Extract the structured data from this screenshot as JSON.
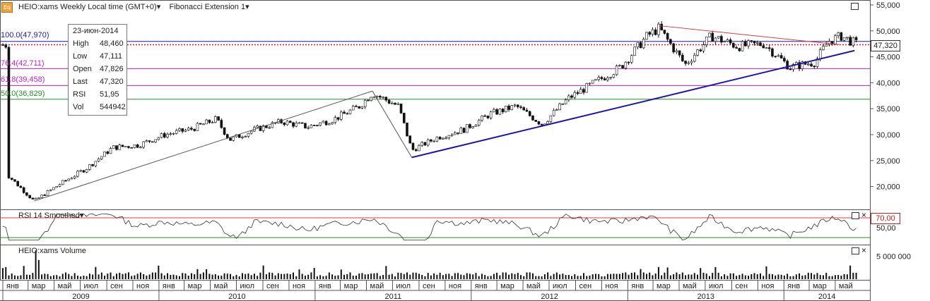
{
  "header": {
    "symbol_label": "HEIO:xams Weekly Local time (GMT+0)",
    "study_label": "Fibonacci Extension 1",
    "icon": "eq-icon",
    "icon_text": "Eq"
  },
  "info_box": {
    "date": "23-июн-2014",
    "rows": [
      {
        "label": "High",
        "value": "48,460"
      },
      {
        "label": "Low",
        "value": "47,111"
      },
      {
        "label": "Open",
        "value": "47,826"
      },
      {
        "label": "Last",
        "value": "47,320"
      },
      {
        "label": "RSI",
        "value": "51,95"
      },
      {
        "label": "Vol",
        "value": "544942"
      }
    ]
  },
  "price_panel": {
    "y_ticks": [
      "55,000",
      "50,000",
      "45,000",
      "40,000",
      "35,000",
      "30,000",
      "25,000",
      "20,000"
    ],
    "y_values": [
      55000,
      50000,
      45000,
      40000,
      35000,
      30000,
      25000,
      20000
    ],
    "current_price_label": "47,320",
    "current_price": 47320,
    "fib_levels": [
      {
        "label": "100.0(47,970)",
        "value": 47970,
        "color": "#1a1aa0"
      },
      {
        "label": "76.4(42,711)",
        "value": 42711,
        "color": "#c020c0"
      },
      {
        "label": "61.8(39,458)",
        "value": 39458,
        "color": "#c020c0"
      },
      {
        "label": "50.0(36,829)",
        "value": 36829,
        "color": "#2a8a2a"
      }
    ]
  },
  "rsi_panel": {
    "title": "RSI 14 Smoothed",
    "level_label": "70,00",
    "level_value": 70,
    "y_tick": "50,00"
  },
  "volume_panel": {
    "title": "HEIO:xams Volume",
    "y_tick": "5 000 000"
  },
  "x_axis": {
    "months": [
      "янв",
      "мар",
      "май",
      "июл",
      "сен",
      "ноя",
      "янв",
      "мар",
      "май",
      "июл",
      "сен",
      "ноя",
      "янв",
      "мар",
      "май",
      "июл",
      "сен",
      "ноя",
      "янв",
      "мар",
      "май",
      "июл",
      "сен",
      "ноя",
      "янв",
      "мар",
      "май",
      "июл",
      "сен",
      "ноя",
      "янв",
      "мар",
      "май"
    ],
    "years": [
      "2009",
      "2010",
      "2011",
      "2012",
      "2013",
      "2014"
    ]
  },
  "chart_data": {
    "type": "candlestick",
    "title": "HEIO:xams Weekly",
    "x_range": [
      "2009-01",
      "2014-06"
    ],
    "ylim": [
      16000,
      56000
    ],
    "close_points": [
      {
        "date": "2009-01",
        "value": 22000
      },
      {
        "date": "2009-03",
        "value": 17200
      },
      {
        "date": "2009-05",
        "value": 20500
      },
      {
        "date": "2009-07",
        "value": 23500
      },
      {
        "date": "2009-09",
        "value": 27500
      },
      {
        "date": "2009-11",
        "value": 28000
      },
      {
        "date": "2010-01",
        "value": 30000
      },
      {
        "date": "2010-03",
        "value": 31000
      },
      {
        "date": "2010-05",
        "value": 33000
      },
      {
        "date": "2010-06",
        "value": 29000
      },
      {
        "date": "2010-08",
        "value": 31000
      },
      {
        "date": "2010-10",
        "value": 32500
      },
      {
        "date": "2010-12",
        "value": 31500
      },
      {
        "date": "2011-02",
        "value": 33000
      },
      {
        "date": "2011-04",
        "value": 35500
      },
      {
        "date": "2011-05",
        "value": 38000
      },
      {
        "date": "2011-07",
        "value": 35500
      },
      {
        "date": "2011-08",
        "value": 27000
      },
      {
        "date": "2011-10",
        "value": 29500
      },
      {
        "date": "2011-12",
        "value": 31000
      },
      {
        "date": "2012-02",
        "value": 34000
      },
      {
        "date": "2012-04",
        "value": 35500
      },
      {
        "date": "2012-06",
        "value": 32000
      },
      {
        "date": "2012-08",
        "value": 37000
      },
      {
        "date": "2012-10",
        "value": 40000
      },
      {
        "date": "2012-12",
        "value": 43000
      },
      {
        "date": "2013-02",
        "value": 49000
      },
      {
        "date": "2013-03",
        "value": 50500
      },
      {
        "date": "2013-05",
        "value": 43500
      },
      {
        "date": "2013-07",
        "value": 49000
      },
      {
        "date": "2013-09",
        "value": 47000
      },
      {
        "date": "2013-11",
        "value": 47500
      },
      {
        "date": "2014-01",
        "value": 43000
      },
      {
        "date": "2014-03",
        "value": 44000
      },
      {
        "date": "2014-04",
        "value": 48000
      },
      {
        "date": "2014-05",
        "value": 49000
      },
      {
        "date": "2014-06",
        "value": 47320
      }
    ],
    "last_bar": {
      "date": "23-июн-2014",
      "high": 48460,
      "low": 47111,
      "open": 47826,
      "close": 47320,
      "rsi": 51.95,
      "volume": 544942
    },
    "trendlines": [
      {
        "from": {
          "date": "2011-08",
          "value": 25600
        },
        "to": {
          "date": "2014-06",
          "value": 46200
        },
        "color": "#1a1aa0"
      },
      {
        "from": {
          "date": "2013-03",
          "value": 51000
        },
        "to": {
          "date": "2014-05",
          "value": 47300
        },
        "color": "#d04040"
      },
      {
        "from": {
          "date": "2009-03",
          "value": 17200
        },
        "to": {
          "date": "2011-05",
          "value": 38400
        },
        "color": "#555555"
      },
      {
        "from": {
          "date": "2011-05",
          "value": 38400
        },
        "to": {
          "date": "2011-08",
          "value": 25600
        },
        "color": "#555555"
      }
    ],
    "legend": "none",
    "grid": false
  }
}
